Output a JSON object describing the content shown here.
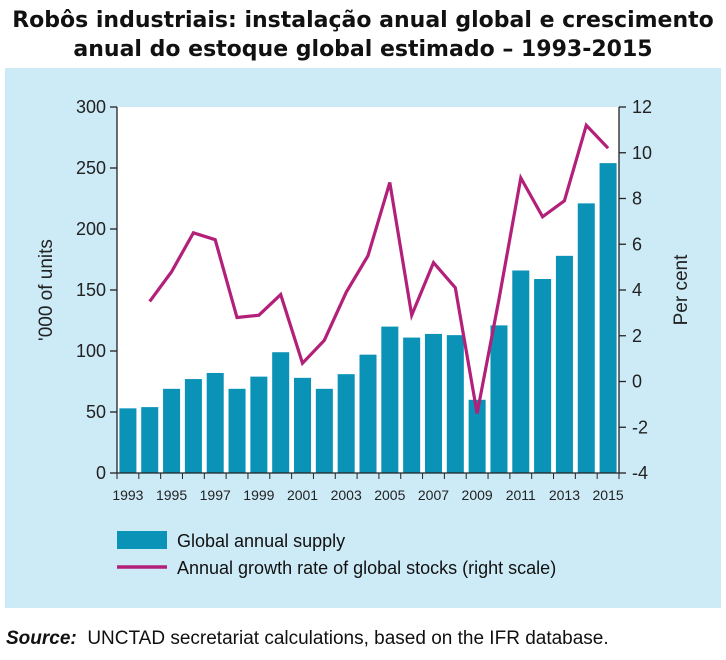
{
  "title": "Robôs industriais: instalação anual global e crescimento anual do estoque global estimado – 1993-2015",
  "source": {
    "label": "Source:",
    "text": "UNCTAD secretariat calculations, based on the IFR database."
  },
  "colors": {
    "panel": "#cdebf7",
    "plot_bg": "#ffffff",
    "bar": "#0a93b7",
    "line": "#b3207a"
  },
  "chart_data": {
    "type": "bar",
    "categories": [
      "1993",
      "1994",
      "1995",
      "1996",
      "1997",
      "1998",
      "1999",
      "2000",
      "2001",
      "2002",
      "2003",
      "2004",
      "2005",
      "2006",
      "2007",
      "2008",
      "2009",
      "2010",
      "2011",
      "2012",
      "2013",
      "2014",
      "2015"
    ],
    "x_tick_labels": [
      "1993",
      "1995",
      "1997",
      "1999",
      "2001",
      "2003",
      "2005",
      "2007",
      "2009",
      "2011",
      "2013",
      "2015"
    ],
    "ylabel": "'000 of units",
    "ylim": [
      0,
      300
    ],
    "yticks": [
      0,
      50,
      100,
      150,
      200,
      250,
      300
    ],
    "y2label": "Per cent",
    "y2lim": [
      -4,
      12
    ],
    "y2ticks": [
      -4,
      -2,
      0,
      2,
      4,
      6,
      8,
      10,
      12
    ],
    "series": [
      {
        "name": "Global annual supply",
        "type": "bar",
        "axis": "left",
        "values": [
          53,
          54,
          69,
          77,
          82,
          69,
          79,
          99,
          78,
          69,
          81,
          97,
          120,
          111,
          114,
          113,
          60,
          121,
          166,
          159,
          178,
          221,
          254
        ]
      },
      {
        "name": "Annual growth rate of global stocks (right scale)",
        "type": "line",
        "axis": "right",
        "values": [
          null,
          3.5,
          4.8,
          6.5,
          6.2,
          2.8,
          2.9,
          3.8,
          0.8,
          1.8,
          3.9,
          5.5,
          8.7,
          2.9,
          5.2,
          4.1,
          -1.4,
          3.6,
          8.9,
          7.2,
          7.9,
          11.2,
          10.2
        ]
      }
    ],
    "legend": "bottom"
  }
}
